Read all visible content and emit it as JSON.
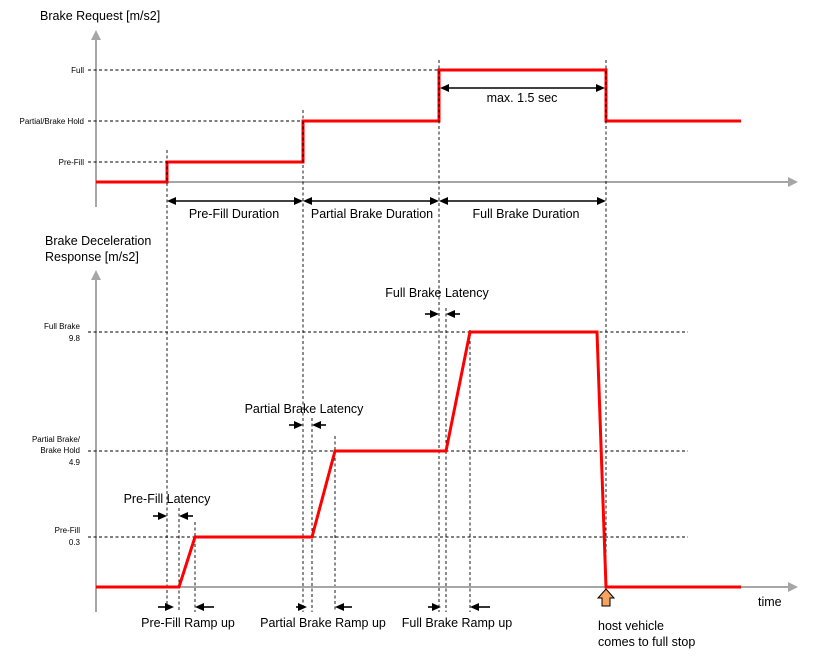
{
  "top_chart": {
    "y_axis_title": "Brake Request [m/s2]",
    "levels": {
      "full": "Full",
      "partial": "Partial/Brake Hold",
      "prefill": "Pre-Fill"
    },
    "full_brake_max_note": "max. 1.5 sec",
    "durations": {
      "prefill": "Pre-Fill Duration",
      "partial": "Partial Brake Duration",
      "full": "Full Brake Duration"
    }
  },
  "bottom_chart": {
    "y_axis_title_line1": "Brake Deceleration",
    "y_axis_title_line2": "Response [m/s2]",
    "levels": {
      "full_line1": "Full Brake",
      "full_value": "9.8",
      "partial_line1": "Partial Brake/",
      "partial_line2": "Brake Hold",
      "partial_value": "4.9",
      "prefill_line1": "Pre-Fill",
      "prefill_value": "0.3"
    },
    "latencies": {
      "prefill": "Pre-Fill Latency",
      "partial": "Partial Brake Latency",
      "full": "Full Brake Latency"
    },
    "ramp_ups": {
      "prefill": "Pre-Fill Ramp up",
      "partial": "Partial Brake Ramp up",
      "full": "Full Brake Ramp up"
    },
    "x_axis_label": "time",
    "stop_note_line1": "host vehicle",
    "stop_note_line2": "comes to full stop"
  },
  "colors": {
    "signal": "#ff0000",
    "axis": "#a6a6a6",
    "stop_marker": "#f4a460"
  }
}
